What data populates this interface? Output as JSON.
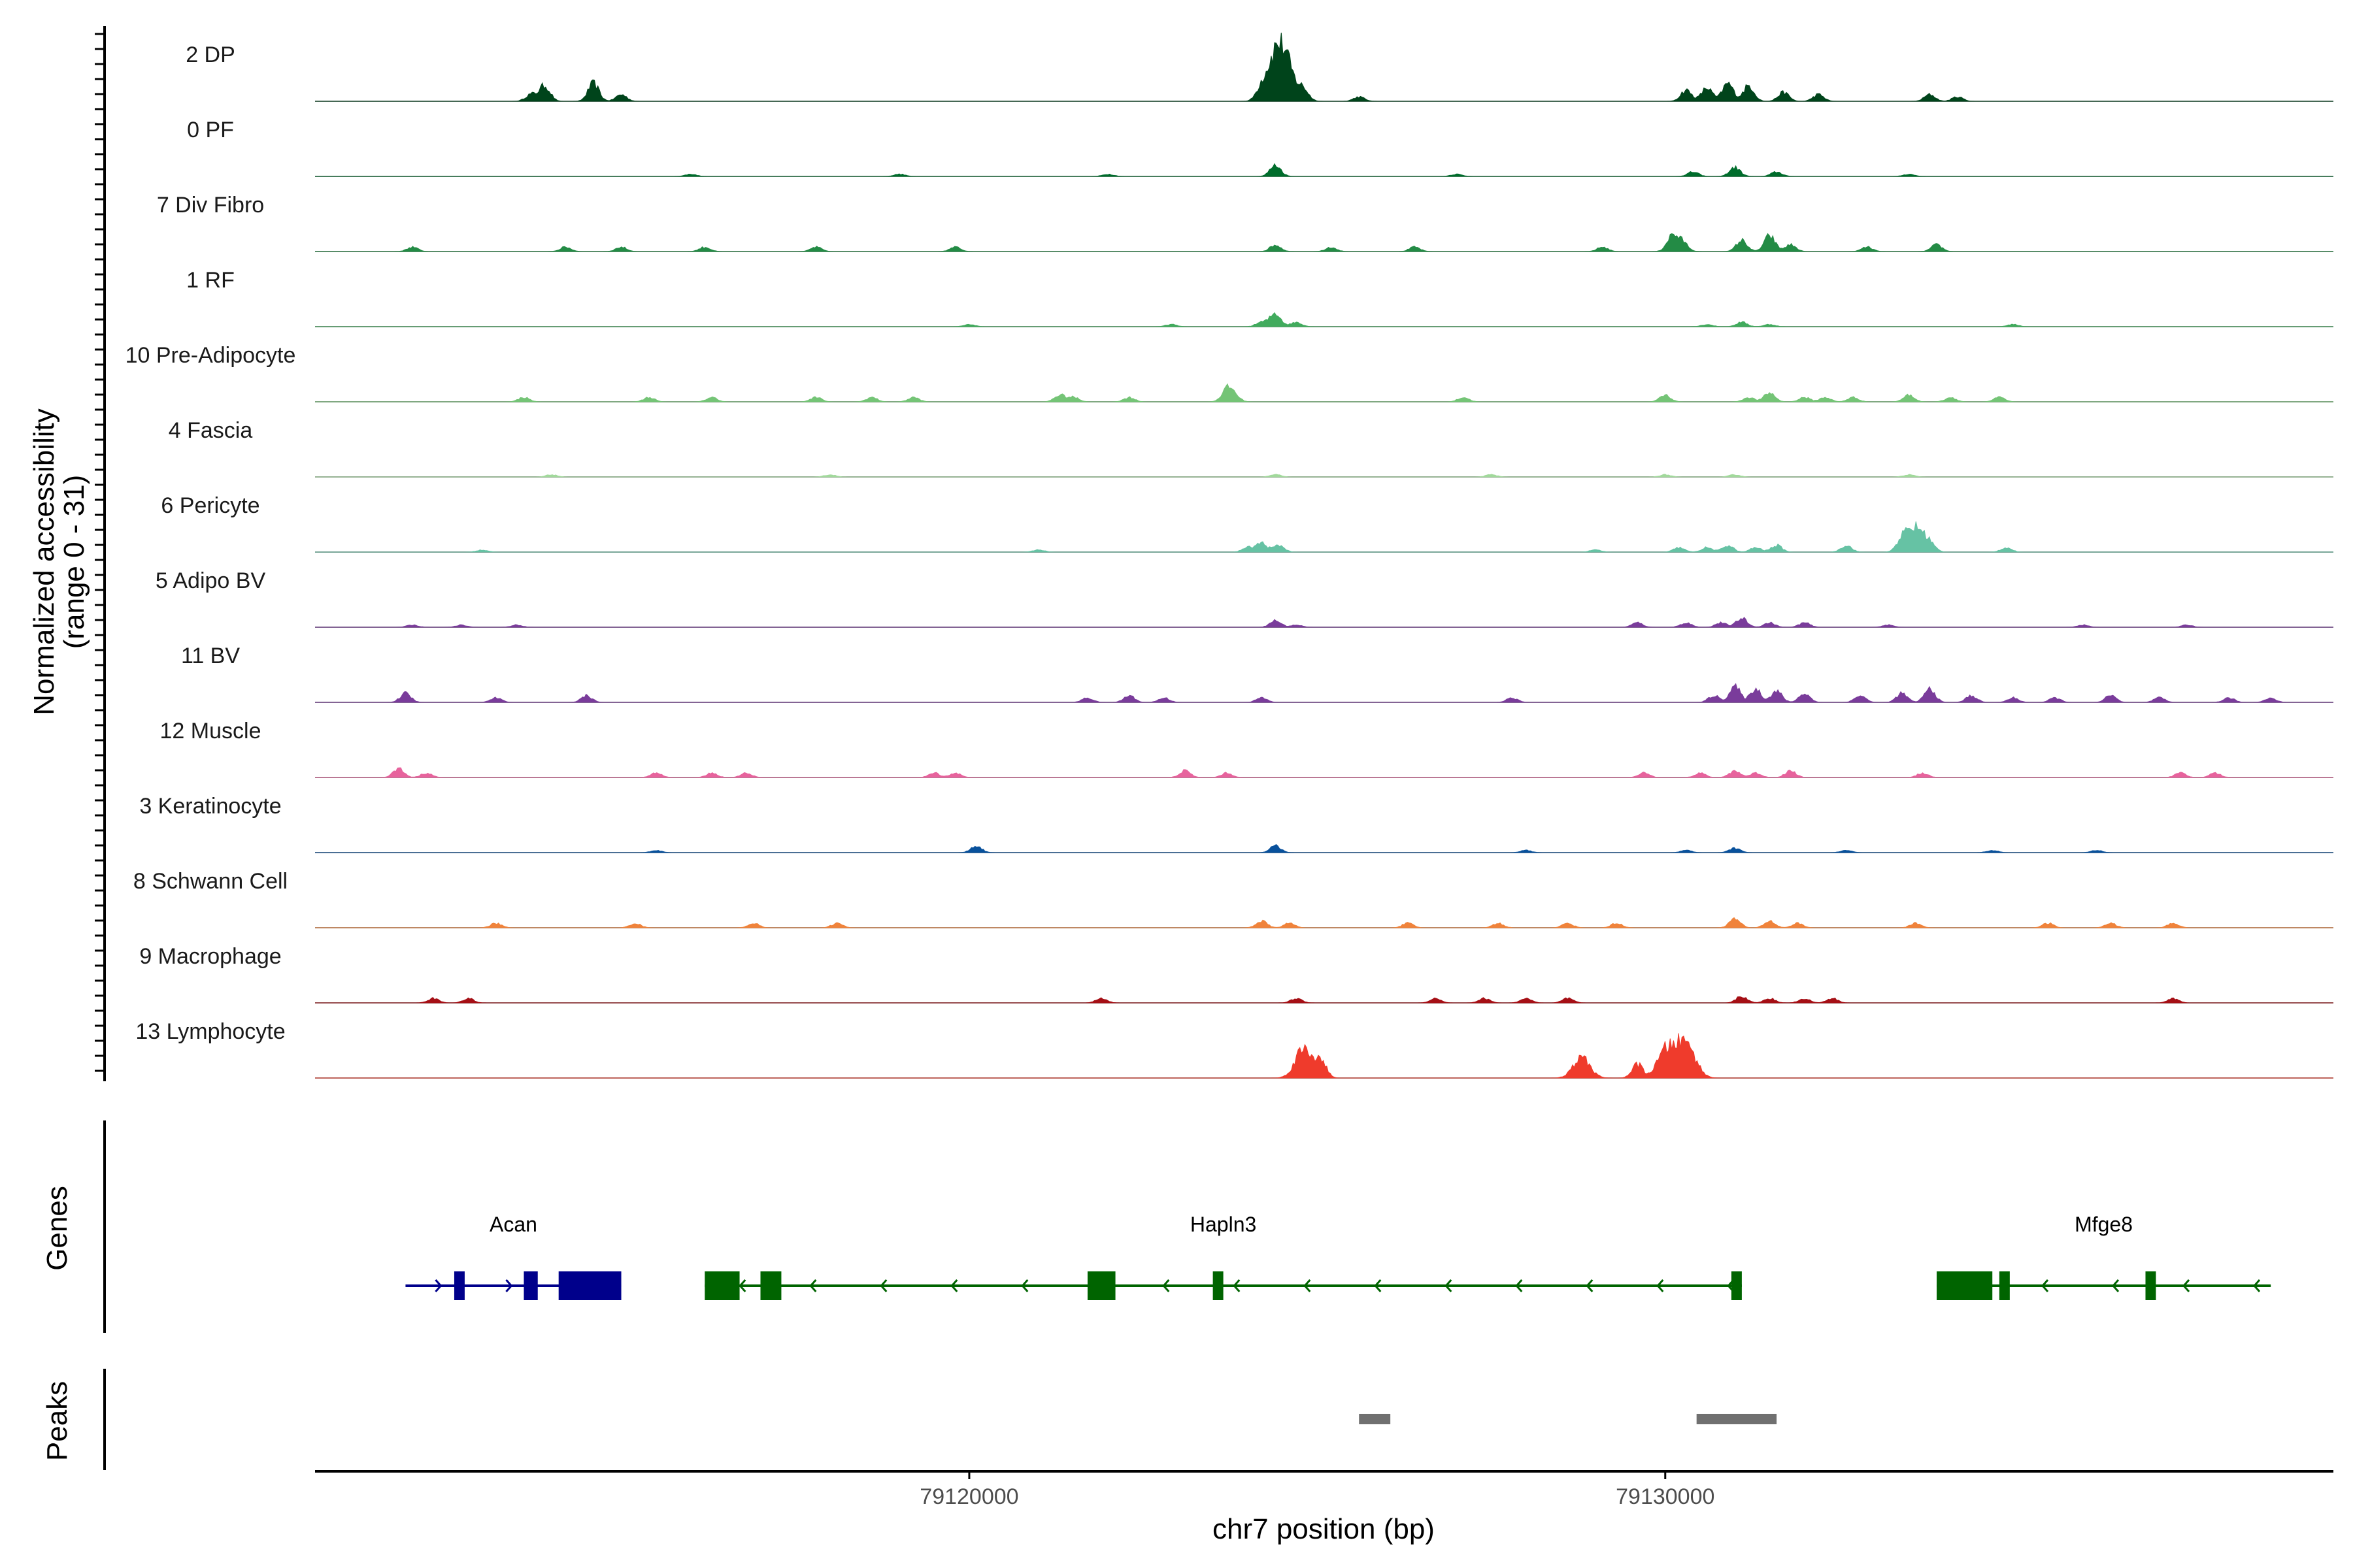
{
  "chart_data": {
    "type": "area",
    "ylabel_line1": "Normalized accessibility",
    "ylabel_line2": "(range 0 - 31)",
    "y_range": [
      0,
      31
    ],
    "xlabel": "chr7 position (bp)",
    "x_range": [
      79110600,
      79139600
    ],
    "x_ticks": [
      79120000,
      79130000
    ],
    "x_tick_labels": [
      "79120000",
      "79130000"
    ],
    "genes_label": "Genes",
    "peaks_label": "Peaks",
    "tracks": [
      {
        "name": "2 DP",
        "color": "#00441b",
        "peaks": [
          [
            79113900,
            7
          ],
          [
            79114600,
            8
          ],
          [
            79113700,
            3
          ],
          [
            79115000,
            3
          ],
          [
            79124400,
            18
          ],
          [
            79124550,
            14
          ],
          [
            79124200,
            5
          ],
          [
            79124800,
            5
          ],
          [
            79130900,
            8
          ],
          [
            79131200,
            7
          ],
          [
            79130300,
            5
          ],
          [
            79130600,
            6
          ],
          [
            79131700,
            4
          ],
          [
            79132200,
            3
          ],
          [
            79133800,
            3
          ],
          [
            79125600,
            2
          ],
          [
            79134200,
            2
          ]
        ]
      },
      {
        "name": "0 PF",
        "color": "#006d2c",
        "peaks": [
          [
            79124400,
            5
          ],
          [
            79131000,
            4
          ],
          [
            79130400,
            2
          ],
          [
            79131600,
            2
          ],
          [
            79119000,
            1
          ],
          [
            79122000,
            1
          ],
          [
            79127000,
            1
          ],
          [
            79133500,
            1
          ],
          [
            79116000,
            1
          ]
        ]
      },
      {
        "name": "7 Div Fibro",
        "color": "#238b45",
        "peaks": [
          [
            79112000,
            2
          ],
          [
            79114200,
            2
          ],
          [
            79115000,
            2
          ],
          [
            79116200,
            2
          ],
          [
            79117800,
            2
          ],
          [
            79119800,
            2
          ],
          [
            79124400,
            3
          ],
          [
            79125200,
            2
          ],
          [
            79126400,
            2
          ],
          [
            79129100,
            2
          ],
          [
            79130100,
            7
          ],
          [
            79130250,
            4
          ],
          [
            79131100,
            5
          ],
          [
            79131500,
            7
          ],
          [
            79131800,
            3
          ],
          [
            79132900,
            2
          ],
          [
            79133900,
            3
          ]
        ]
      },
      {
        "name": "1 RF",
        "color": "#41ab5d",
        "peaks": [
          [
            79124400,
            6
          ],
          [
            79124200,
            2
          ],
          [
            79124700,
            2
          ],
          [
            79131100,
            2
          ],
          [
            79130600,
            1
          ],
          [
            79131500,
            1
          ],
          [
            79122900,
            1
          ],
          [
            79120000,
            1
          ],
          [
            79135000,
            1
          ]
        ]
      },
      {
        "name": "10 Pre-Adipocyte",
        "color": "#74c476",
        "peaks": [
          [
            79113600,
            2
          ],
          [
            79115400,
            2
          ],
          [
            79116300,
            2
          ],
          [
            79117800,
            2
          ],
          [
            79118600,
            2
          ],
          [
            79119200,
            2
          ],
          [
            79121300,
            3
          ],
          [
            79121500,
            2
          ],
          [
            79122300,
            2
          ],
          [
            79123700,
            5
          ],
          [
            79123800,
            3
          ],
          [
            79127100,
            2
          ],
          [
            79130000,
            3
          ],
          [
            79131200,
            2
          ],
          [
            79131500,
            4
          ],
          [
            79132000,
            2
          ],
          [
            79132300,
            2
          ],
          [
            79132700,
            2
          ],
          [
            79133500,
            3
          ],
          [
            79134100,
            2
          ],
          [
            79134800,
            2
          ]
        ]
      },
      {
        "name": "4 Fascia",
        "color": "#a1d99b",
        "peaks": [
          [
            79114000,
            1
          ],
          [
            79124400,
            1
          ],
          [
            79130000,
            1
          ],
          [
            79131000,
            1
          ],
          [
            79133500,
            1
          ],
          [
            79127500,
            1
          ],
          [
            79118000,
            1
          ]
        ]
      },
      {
        "name": "6 Pericyte",
        "color": "#66c2a4",
        "peaks": [
          [
            79124200,
            4
          ],
          [
            79124450,
            3
          ],
          [
            79124000,
            2
          ],
          [
            79129000,
            1
          ],
          [
            79130200,
            2
          ],
          [
            79130600,
            2
          ],
          [
            79130900,
            3
          ],
          [
            79131300,
            2
          ],
          [
            79131600,
            3
          ],
          [
            79132600,
            3
          ],
          [
            79133400,
            5
          ],
          [
            79133600,
            11
          ],
          [
            79133800,
            3
          ],
          [
            79134900,
            2
          ],
          [
            79113000,
            1
          ],
          [
            79121000,
            1
          ]
        ]
      },
      {
        "name": "5 Adipo BV",
        "color": "#7a3c9b",
        "peaks": [
          [
            79112000,
            1
          ],
          [
            79112700,
            1
          ],
          [
            79113500,
            1
          ],
          [
            79124400,
            3
          ],
          [
            79124700,
            1
          ],
          [
            79129600,
            2
          ],
          [
            79130300,
            2
          ],
          [
            79130800,
            2
          ],
          [
            79131100,
            4
          ],
          [
            79131500,
            2
          ],
          [
            79132000,
            2
          ],
          [
            79133200,
            1
          ],
          [
            79136000,
            1
          ],
          [
            79137500,
            1
          ]
        ]
      },
      {
        "name": "11 BV",
        "color": "#7a3c9b",
        "peaks": [
          [
            79111900,
            4
          ],
          [
            79113200,
            2
          ],
          [
            79114500,
            3
          ],
          [
            79121700,
            2
          ],
          [
            79122300,
            3
          ],
          [
            79122800,
            2
          ],
          [
            79124200,
            2
          ],
          [
            79127800,
            2
          ],
          [
            79130700,
            3
          ],
          [
            79131000,
            7
          ],
          [
            79131300,
            6
          ],
          [
            79131600,
            5
          ],
          [
            79132000,
            4
          ],
          [
            79132800,
            3
          ],
          [
            79133400,
            4
          ],
          [
            79133800,
            6
          ],
          [
            79134400,
            3
          ],
          [
            79135000,
            2
          ],
          [
            79135600,
            2
          ],
          [
            79136400,
            3
          ],
          [
            79137100,
            2
          ],
          [
            79138100,
            2
          ],
          [
            79138700,
            2
          ]
        ]
      },
      {
        "name": "12 Muscle",
        "color": "#e7639d",
        "peaks": [
          [
            79111800,
            4
          ],
          [
            79112200,
            2
          ],
          [
            79115500,
            2
          ],
          [
            79116300,
            2
          ],
          [
            79116800,
            2
          ],
          [
            79119500,
            2
          ],
          [
            79119800,
            2
          ],
          [
            79123100,
            3
          ],
          [
            79123700,
            2
          ],
          [
            79129700,
            2
          ],
          [
            79130500,
            2
          ],
          [
            79131000,
            3
          ],
          [
            79131300,
            2
          ],
          [
            79131800,
            3
          ],
          [
            79133700,
            2
          ],
          [
            79137400,
            2
          ],
          [
            79137900,
            2
          ]
        ]
      },
      {
        "name": "3 Keratinocyte",
        "color": "#08519c",
        "peaks": [
          [
            79120100,
            3
          ],
          [
            79124400,
            3
          ],
          [
            79131000,
            2
          ],
          [
            79130300,
            1
          ],
          [
            79132600,
            1
          ],
          [
            79134700,
            1
          ],
          [
            79128000,
            1
          ],
          [
            79115500,
            1
          ],
          [
            79136200,
            1
          ]
        ]
      },
      {
        "name": "8 Schwann Cell",
        "color": "#f0833b",
        "peaks": [
          [
            79113200,
            2
          ],
          [
            79115200,
            2
          ],
          [
            79116900,
            2
          ],
          [
            79118100,
            2
          ],
          [
            79124200,
            3
          ],
          [
            79124600,
            2
          ],
          [
            79126300,
            2
          ],
          [
            79127600,
            2
          ],
          [
            79128600,
            2
          ],
          [
            79129300,
            2
          ],
          [
            79131000,
            4
          ],
          [
            79131500,
            3
          ],
          [
            79131900,
            2
          ],
          [
            79133600,
            2
          ],
          [
            79135500,
            2
          ],
          [
            79136400,
            2
          ],
          [
            79137300,
            2
          ]
        ]
      },
      {
        "name": "9 Macrophage",
        "color": "#a50f15",
        "peaks": [
          [
            79112300,
            2
          ],
          [
            79112800,
            2
          ],
          [
            79121900,
            2
          ],
          [
            79124700,
            2
          ],
          [
            79126700,
            2
          ],
          [
            79127400,
            2
          ],
          [
            79128000,
            2
          ],
          [
            79128600,
            2
          ],
          [
            79131100,
            3
          ],
          [
            79131500,
            2
          ],
          [
            79132000,
            2
          ],
          [
            79132400,
            2
          ],
          [
            79137300,
            2
          ]
        ]
      },
      {
        "name": "13 Lymphocyte",
        "color": "#ef3b2c",
        "peaks": [
          [
            79124800,
            13
          ],
          [
            79125050,
            8
          ],
          [
            79128800,
            9
          ],
          [
            79129600,
            6
          ],
          [
            79130000,
            11
          ],
          [
            79130200,
            9
          ],
          [
            79130350,
            10
          ]
        ]
      }
    ],
    "genes": [
      {
        "name": "Acan",
        "color": "#00008b",
        "strand": "+",
        "start": 79111900,
        "end": 79115000,
        "exons": [
          [
            79112600,
            79112750
          ],
          [
            79113600,
            79113800
          ],
          [
            79114100,
            79115000
          ]
        ]
      },
      {
        "name": "Hapln3",
        "color": "#006400",
        "strand": "-",
        "start": 79116200,
        "end": 79131100,
        "exons": [
          [
            79116200,
            79116700
          ],
          [
            79117000,
            79117300
          ],
          [
            79121700,
            79122100
          ],
          [
            79123500,
            79123650
          ],
          [
            79130950,
            79131100
          ]
        ]
      },
      {
        "name": "Mfge8",
        "color": "#006400",
        "strand": "-",
        "start": 79133900,
        "end": 79138700,
        "exons": [
          [
            79133900,
            79134700
          ],
          [
            79134800,
            79134950
          ],
          [
            79136900,
            79137050
          ]
        ]
      }
    ],
    "peak_regions": [
      [
        79125600,
        79126050
      ],
      [
        79130450,
        79131600
      ]
    ],
    "peak_color": "#707070"
  }
}
